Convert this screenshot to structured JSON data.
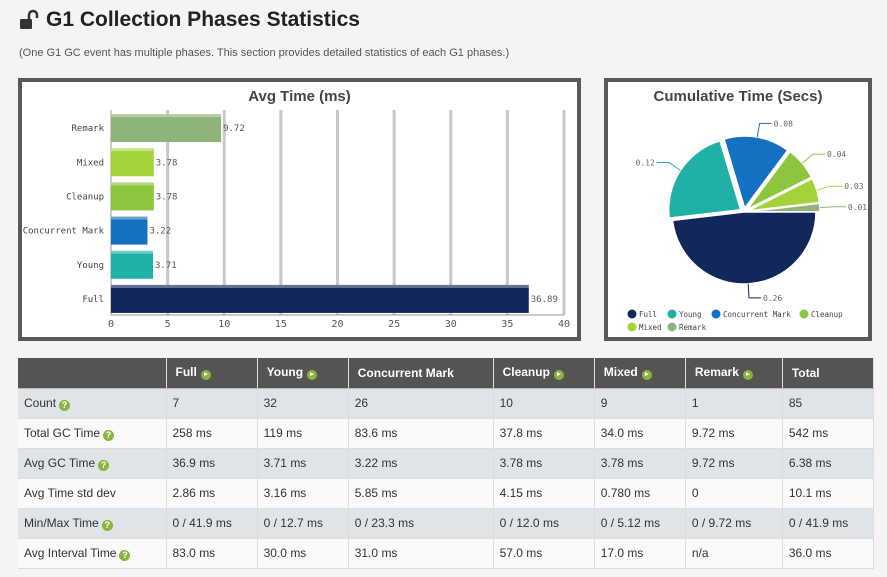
{
  "page": {
    "title": "G1 Collection Phases Statistics",
    "subtitle": "(One G1 GC event has multiple phases. This section provides detailed statistics of each G1 phases.)"
  },
  "colors": {
    "Full": "#12285a",
    "Young": "#1fb0a8",
    "Concurrent Mark": "#1470c0",
    "Cleanup": "#8cc63f",
    "Mixed": "#a3d23a",
    "Remark": "#8fb47a"
  },
  "chart_data": [
    {
      "type": "bar",
      "orientation": "horizontal",
      "title": "Avg Time (ms)",
      "categories": [
        "Remark",
        "Mixed",
        "Cleanup",
        "Concurrent Mark",
        "Young",
        "Full"
      ],
      "values": [
        9.72,
        3.78,
        3.78,
        3.22,
        3.71,
        36.89
      ],
      "value_labels": [
        "9.72",
        "3.78",
        "3.78",
        "3.22",
        "3.71",
        "36.89"
      ],
      "xlim": [
        0,
        40
      ],
      "xticks": [
        0,
        5,
        10,
        15,
        20,
        25,
        30,
        35,
        40
      ],
      "grid": true
    },
    {
      "type": "pie",
      "title": "Cumulative Time (Secs)",
      "labels": [
        "Full",
        "Young",
        "Concurrent Mark",
        "Cleanup",
        "Mixed",
        "Remark"
      ],
      "values": [
        0.26,
        0.12,
        0.08,
        0.04,
        0.03,
        0.01
      ],
      "value_labels": [
        "0.26",
        "0.12",
        "0.08",
        "0.04",
        "0.03",
        "0.01"
      ],
      "legend": "bottom"
    }
  ],
  "table": {
    "headers": [
      "",
      "Full",
      "Young",
      "Concurrent Mark",
      "Cleanup",
      "Mixed",
      "Remark",
      "Total"
    ],
    "header_icons": [
      false,
      true,
      true,
      false,
      true,
      true,
      true,
      false
    ],
    "rows": [
      {
        "label": "Count",
        "help": true,
        "cells": [
          "7",
          "32",
          "26",
          "10",
          "9",
          "1",
          "85"
        ]
      },
      {
        "label": "Total GC Time",
        "help": true,
        "cells": [
          "258 ms",
          "119 ms",
          "83.6 ms",
          "37.8 ms",
          "34.0 ms",
          "9.72 ms",
          "542 ms"
        ]
      },
      {
        "label": "Avg GC Time",
        "help": true,
        "cells": [
          "36.9 ms",
          "3.71 ms",
          "3.22 ms",
          "3.78 ms",
          "3.78 ms",
          "9.72 ms",
          "6.38 ms"
        ]
      },
      {
        "label": "Avg Time std dev",
        "help": false,
        "cells": [
          "2.86 ms",
          "3.16 ms",
          "5.85 ms",
          "4.15 ms",
          "0.780 ms",
          "0",
          "10.1 ms"
        ]
      },
      {
        "label": "Min/Max Time",
        "help": true,
        "cells": [
          "0 / 41.9 ms",
          "0 / 12.7 ms",
          "0 / 23.3 ms",
          "0 / 12.0 ms",
          "0 / 5.12 ms",
          "0 / 9.72 ms",
          "0 / 41.9 ms"
        ]
      },
      {
        "label": "Avg Interval Time",
        "help": true,
        "cells": [
          "83.0 ms",
          "30.0 ms",
          "31.0 ms",
          "57.0 ms",
          "17.0 ms",
          "n/a",
          "36.0 ms"
        ]
      }
    ]
  }
}
